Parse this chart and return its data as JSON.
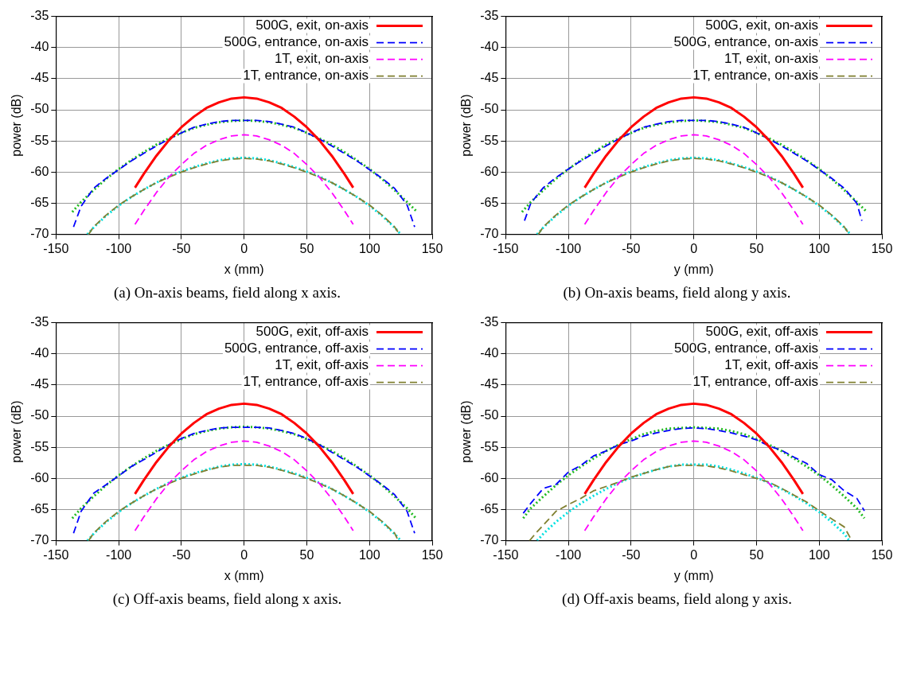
{
  "chart_data": [
    {
      "type": "line",
      "xlabel": "x (mm)",
      "ylabel": "power (dB)",
      "xlim": [
        -150,
        150
      ],
      "ylim": [
        -70,
        -35
      ],
      "xticks": [
        -150,
        -100,
        -50,
        0,
        50,
        100,
        150
      ],
      "yticks": [
        -70,
        -65,
        -60,
        -55,
        -50,
        -45,
        -40,
        -35
      ],
      "grid": true,
      "legend": "top right",
      "marker": "none",
      "annotations": [
        "(a) On-axis beams, field along x axis."
      ],
      "series": [
        {
          "name": "500G, exit, on-axis",
          "color": "#ff0000",
          "line_style": "solid",
          "x": [
            -87,
            -80,
            -70,
            -60,
            -50,
            -40,
            -30,
            -20,
            -10,
            0,
            10,
            20,
            30,
            40,
            50,
            60,
            70,
            80,
            87
          ],
          "values": [
            -62.5,
            -60.3,
            -57.4,
            -54.9,
            -52.8,
            -51.1,
            -49.7,
            -48.8,
            -48.2,
            -48,
            -48.2,
            -48.8,
            -49.7,
            -51.1,
            -52.8,
            -54.9,
            -57.4,
            -60.3,
            -62.5
          ]
        },
        {
          "name": "500G, entrance, on-axis",
          "color": "#0000ff",
          "line_style": "dashed",
          "x": [
            -136,
            -130,
            -120,
            -110,
            -100,
            -90,
            -80,
            -70,
            -60,
            -50,
            -40,
            -30,
            -20,
            -10,
            0,
            10,
            20,
            30,
            40,
            50,
            60,
            70,
            80,
            90,
            100,
            110,
            120,
            130,
            136
          ],
          "values": [
            -68.8,
            -65.5,
            -62.6,
            -61.0,
            -59.6,
            -58.2,
            -57.0,
            -55.8,
            -54.7,
            -53.7,
            -52.8,
            -52.3,
            -51.9,
            -51.7,
            -51.7,
            -51.7,
            -51.9,
            -52.3,
            -52.8,
            -53.7,
            -54.7,
            -55.8,
            -57.0,
            -58.2,
            -59.6,
            -61.0,
            -62.6,
            -65.3,
            -68.8
          ]
        },
        {
          "name": "1T, exit, on-axis",
          "color": "#ff00ff",
          "line_style": "dashed",
          "x": [
            -87,
            -80,
            -70,
            -60,
            -50,
            -40,
            -30,
            -20,
            -10,
            0,
            10,
            20,
            30,
            40,
            50,
            60,
            70,
            80,
            87
          ],
          "values": [
            -68.4,
            -66.2,
            -63.3,
            -60.8,
            -58.8,
            -57.0,
            -55.7,
            -54.8,
            -54.2,
            -54,
            -54.2,
            -54.8,
            -55.7,
            -57.0,
            -58.8,
            -60.8,
            -63.3,
            -66.2,
            -68.4
          ]
        },
        {
          "name": "1T, entrance, on-axis",
          "color": "#808030",
          "line_style": "dashed",
          "x": [
            -124,
            -120,
            -110,
            -100,
            -90,
            -80,
            -70,
            -60,
            -50,
            -40,
            -30,
            -20,
            -10,
            0,
            10,
            20,
            30,
            40,
            50,
            60,
            70,
            80,
            90,
            100,
            110,
            120,
            124
          ],
          "values": [
            -70,
            -68.8,
            -66.9,
            -65.3,
            -64.0,
            -62.8,
            -61.7,
            -60.8,
            -60.0,
            -59.3,
            -58.7,
            -58.2,
            -57.9,
            -57.8,
            -57.9,
            -58.2,
            -58.7,
            -59.3,
            -60.0,
            -60.8,
            -61.7,
            -62.8,
            -64.0,
            -65.3,
            -66.9,
            -68.8,
            -70
          ]
        },
        {
          "color": "#22bb22",
          "line_style": "dotted",
          "x": [
            -137,
            -130,
            -120,
            -110,
            -100,
            -90,
            -80,
            -70,
            -60,
            -50,
            -40,
            -30,
            -20,
            -10,
            0,
            10,
            20,
            30,
            40,
            50,
            60,
            70,
            80,
            90,
            100,
            110,
            120,
            130,
            137
          ],
          "values": [
            -66.4,
            -64.8,
            -62.9,
            -61.1,
            -59.5,
            -58.1,
            -56.8,
            -55.6,
            -54.6,
            -53.7,
            -52.9,
            -52.4,
            -52.0,
            -51.8,
            -51.7,
            -51.8,
            -52.0,
            -52.4,
            -52.9,
            -53.7,
            -54.6,
            -55.6,
            -56.8,
            -58.1,
            -59.5,
            -61.1,
            -62.9,
            -64.8,
            -66.2
          ]
        },
        {
          "color": "#00e0e0",
          "line_style": "dotted",
          "x": [
            -125,
            -120,
            -110,
            -100,
            -90,
            -80,
            -70,
            -60,
            -50,
            -40,
            -30,
            -20,
            -10,
            0,
            10,
            20,
            30,
            40,
            50,
            60,
            70,
            80,
            90,
            100,
            110,
            120,
            125
          ],
          "values": [
            -70,
            -68.9,
            -67.0,
            -65.4,
            -64.0,
            -62.8,
            -61.7,
            -60.7,
            -59.9,
            -59.2,
            -58.6,
            -58.1,
            -57.8,
            -57.7,
            -57.8,
            -58.1,
            -58.6,
            -59.2,
            -59.9,
            -60.7,
            -61.7,
            -62.8,
            -64.0,
            -65.4,
            -67.0,
            -68.9,
            -70
          ]
        }
      ]
    },
    {
      "type": "line",
      "xlabel": "y (mm)",
      "ylabel": "power (dB)",
      "xlim": [
        -150,
        150
      ],
      "ylim": [
        -70,
        -35
      ],
      "xticks": [
        -150,
        -100,
        -50,
        0,
        50,
        100,
        150
      ],
      "yticks": [
        -70,
        -65,
        -60,
        -55,
        -50,
        -45,
        -40,
        -35
      ],
      "grid": true,
      "legend": "top right",
      "marker": "none",
      "annotations": [
        "(b) On-axis beams, field along y axis."
      ],
      "series": [
        {
          "name": "500G, exit, on-axis",
          "color": "#ff0000",
          "line_style": "solid",
          "x": [
            -87,
            -80,
            -70,
            -60,
            -50,
            -40,
            -30,
            -20,
            -10,
            0,
            10,
            20,
            30,
            40,
            50,
            60,
            70,
            80,
            87
          ],
          "values": [
            -62.5,
            -60.3,
            -57.4,
            -54.9,
            -52.8,
            -51.1,
            -49.7,
            -48.8,
            -48.2,
            -48,
            -48.2,
            -48.8,
            -49.7,
            -51.1,
            -52.8,
            -54.9,
            -57.4,
            -60.3,
            -62.5
          ]
        },
        {
          "name": "500G, entrance, on-axis",
          "color": "#0000ff",
          "line_style": "dashed",
          "x": [
            -135,
            -130,
            -120,
            -110,
            -100,
            -90,
            -80,
            -70,
            -60,
            -50,
            -40,
            -30,
            -20,
            -10,
            0,
            10,
            20,
            30,
            40,
            50,
            60,
            70,
            80,
            90,
            100,
            110,
            120,
            130,
            134
          ],
          "values": [
            -67.8,
            -65.0,
            -62.5,
            -60.9,
            -59.5,
            -58.2,
            -57.0,
            -55.8,
            -54.7,
            -53.7,
            -52.8,
            -52.3,
            -51.9,
            -51.7,
            -51.7,
            -51.7,
            -51.9,
            -52.3,
            -52.8,
            -53.7,
            -54.7,
            -55.8,
            -57.0,
            -58.2,
            -59.6,
            -61.0,
            -62.6,
            -65.0,
            -67.8
          ]
        },
        {
          "name": "1T, exit, on-axis",
          "color": "#ff00ff",
          "line_style": "dashed",
          "x": [
            -87,
            -80,
            -70,
            -60,
            -50,
            -40,
            -30,
            -20,
            -10,
            0,
            10,
            20,
            30,
            40,
            50,
            60,
            70,
            80,
            87
          ],
          "values": [
            -68.4,
            -66.2,
            -63.3,
            -60.8,
            -58.8,
            -57.0,
            -55.7,
            -54.8,
            -54.2,
            -54,
            -54.2,
            -54.8,
            -55.7,
            -57.0,
            -58.8,
            -60.8,
            -63.3,
            -66.2,
            -68.4
          ]
        },
        {
          "name": "1T, entrance, on-axis",
          "color": "#808030",
          "line_style": "dashed",
          "x": [
            -124,
            -120,
            -110,
            -100,
            -90,
            -80,
            -70,
            -60,
            -50,
            -40,
            -30,
            -20,
            -10,
            0,
            10,
            20,
            30,
            40,
            50,
            60,
            70,
            80,
            90,
            100,
            110,
            120,
            124
          ],
          "values": [
            -70,
            -68.8,
            -66.9,
            -65.3,
            -64.0,
            -62.8,
            -61.7,
            -60.8,
            -60.0,
            -59.3,
            -58.7,
            -58.2,
            -57.9,
            -57.8,
            -57.9,
            -58.2,
            -58.7,
            -59.3,
            -60.0,
            -60.8,
            -61.7,
            -62.8,
            -64.0,
            -65.3,
            -66.9,
            -68.8,
            -70
          ]
        },
        {
          "color": "#22bb22",
          "line_style": "dotted",
          "x": [
            -137,
            -130,
            -120,
            -110,
            -100,
            -90,
            -80,
            -70,
            -60,
            -50,
            -40,
            -30,
            -20,
            -10,
            0,
            10,
            20,
            30,
            40,
            50,
            60,
            70,
            80,
            90,
            100,
            110,
            120,
            130,
            137
          ],
          "values": [
            -66.4,
            -64.8,
            -62.9,
            -61.1,
            -59.5,
            -58.1,
            -56.8,
            -55.6,
            -54.6,
            -53.7,
            -52.9,
            -52.4,
            -52.0,
            -51.8,
            -51.7,
            -51.8,
            -52.0,
            -52.4,
            -52.9,
            -53.7,
            -54.6,
            -55.6,
            -56.8,
            -58.1,
            -59.5,
            -61.1,
            -62.9,
            -64.8,
            -66.2
          ]
        },
        {
          "color": "#00e0e0",
          "line_style": "dotted",
          "x": [
            -125,
            -120,
            -110,
            -100,
            -90,
            -80,
            -70,
            -60,
            -50,
            -40,
            -30,
            -20,
            -10,
            0,
            10,
            20,
            30,
            40,
            50,
            60,
            70,
            80,
            90,
            100,
            110,
            120,
            125
          ],
          "values": [
            -70,
            -68.9,
            -67.0,
            -65.4,
            -64.0,
            -62.8,
            -61.7,
            -60.7,
            -59.9,
            -59.2,
            -58.6,
            -58.1,
            -57.8,
            -57.7,
            -57.8,
            -58.1,
            -58.6,
            -59.2,
            -59.9,
            -60.7,
            -61.7,
            -62.8,
            -64.0,
            -65.4,
            -67.0,
            -68.9,
            -70
          ]
        }
      ]
    },
    {
      "type": "line",
      "xlabel": "x (mm)",
      "ylabel": "power (dB)",
      "xlim": [
        -150,
        150
      ],
      "ylim": [
        -70,
        -35
      ],
      "xticks": [
        -150,
        -100,
        -50,
        0,
        50,
        100,
        150
      ],
      "yticks": [
        -70,
        -65,
        -60,
        -55,
        -50,
        -45,
        -40,
        -35
      ],
      "grid": true,
      "legend": "top right",
      "marker": "none",
      "annotations": [
        "(c) Off-axis beams, field along x axis."
      ],
      "series": [
        {
          "name": "500G, exit, off-axis",
          "color": "#ff0000",
          "line_style": "solid",
          "x": [
            -87,
            -80,
            -70,
            -60,
            -50,
            -40,
            -30,
            -20,
            -10,
            0,
            10,
            20,
            30,
            40,
            50,
            60,
            70,
            80,
            87
          ],
          "values": [
            -62.5,
            -60.3,
            -57.4,
            -54.9,
            -52.8,
            -51.1,
            -49.7,
            -48.8,
            -48.2,
            -48,
            -48.2,
            -48.8,
            -49.7,
            -51.1,
            -52.8,
            -54.9,
            -57.4,
            -60.3,
            -62.5
          ]
        },
        {
          "name": "500G, entrance, off-axis",
          "color": "#0000ff",
          "line_style": "dashed",
          "x": [
            -136,
            -130,
            -120,
            -110,
            -100,
            -90,
            -80,
            -70,
            -60,
            -50,
            -40,
            -30,
            -20,
            -10,
            0,
            10,
            20,
            30,
            40,
            50,
            60,
            70,
            80,
            90,
            100,
            110,
            120,
            130,
            136
          ],
          "values": [
            -68.8,
            -65.3,
            -62.4,
            -61.0,
            -59.6,
            -58.1,
            -57.0,
            -55.8,
            -54.6,
            -53.6,
            -52.8,
            -52.3,
            -51.9,
            -51.8,
            -51.8,
            -51.8,
            -51.9,
            -52.3,
            -52.8,
            -53.6,
            -54.6,
            -55.8,
            -57.0,
            -58.2,
            -59.6,
            -61.0,
            -62.6,
            -65.3,
            -68.8
          ]
        },
        {
          "name": "1T, exit, off-axis",
          "color": "#ff00ff",
          "line_style": "dashed",
          "x": [
            -87,
            -80,
            -70,
            -60,
            -50,
            -40,
            -30,
            -20,
            -10,
            0,
            10,
            20,
            30,
            40,
            50,
            60,
            70,
            80,
            87
          ],
          "values": [
            -68.4,
            -66.2,
            -63.3,
            -60.8,
            -58.8,
            -57.0,
            -55.7,
            -54.8,
            -54.2,
            -54,
            -54.2,
            -54.8,
            -55.7,
            -57.0,
            -58.8,
            -60.8,
            -63.3,
            -66.2,
            -68.4
          ]
        },
        {
          "name": "1T, entrance, off-axis",
          "color": "#808030",
          "line_style": "dashed",
          "x": [
            -124,
            -120,
            -110,
            -100,
            -90,
            -80,
            -70,
            -60,
            -50,
            -40,
            -30,
            -20,
            -10,
            0,
            10,
            20,
            30,
            40,
            50,
            60,
            70,
            80,
            90,
            100,
            110,
            120,
            123
          ],
          "values": [
            -70,
            -68.8,
            -66.9,
            -65.3,
            -64.0,
            -62.8,
            -61.7,
            -60.8,
            -60.0,
            -59.3,
            -58.7,
            -58.2,
            -57.9,
            -57.9,
            -57.9,
            -58.2,
            -58.7,
            -59.3,
            -60.0,
            -60.8,
            -61.7,
            -62.8,
            -64.0,
            -65.3,
            -66.9,
            -68.8,
            -70
          ]
        },
        {
          "color": "#22bb22",
          "line_style": "dotted",
          "x": [
            -137,
            -130,
            -120,
            -110,
            -100,
            -90,
            -80,
            -70,
            -60,
            -50,
            -40,
            -30,
            -20,
            -10,
            0,
            10,
            20,
            30,
            40,
            50,
            60,
            70,
            80,
            90,
            100,
            110,
            120,
            130,
            137
          ],
          "values": [
            -66.4,
            -64.8,
            -62.9,
            -61.1,
            -59.5,
            -58.1,
            -56.8,
            -55.6,
            -54.6,
            -53.7,
            -52.9,
            -52.4,
            -52.0,
            -51.8,
            -51.7,
            -51.8,
            -52.0,
            -52.4,
            -52.9,
            -53.7,
            -54.6,
            -55.6,
            -56.8,
            -58.1,
            -59.5,
            -61.1,
            -62.9,
            -64.8,
            -66.4
          ]
        },
        {
          "color": "#00e0e0",
          "line_style": "dotted",
          "x": [
            -125,
            -120,
            -110,
            -100,
            -90,
            -80,
            -70,
            -60,
            -50,
            -40,
            -30,
            -20,
            -10,
            0,
            10,
            20,
            30,
            40,
            50,
            60,
            70,
            80,
            90,
            100,
            110,
            120,
            125
          ],
          "values": [
            -70,
            -68.9,
            -67.0,
            -65.4,
            -64.0,
            -62.8,
            -61.7,
            -60.7,
            -59.9,
            -59.2,
            -58.6,
            -58.1,
            -57.8,
            -57.7,
            -57.8,
            -58.1,
            -58.6,
            -59.2,
            -59.9,
            -60.7,
            -61.7,
            -62.8,
            -64.0,
            -65.4,
            -67.0,
            -68.9,
            -70
          ]
        }
      ]
    },
    {
      "type": "line",
      "xlabel": "y (mm)",
      "ylabel": "power (dB)",
      "xlim": [
        -150,
        150
      ],
      "ylim": [
        -70,
        -35
      ],
      "xticks": [
        -150,
        -100,
        -50,
        0,
        50,
        100,
        150
      ],
      "yticks": [
        -70,
        -65,
        -60,
        -55,
        -50,
        -45,
        -40,
        -35
      ],
      "grid": true,
      "legend": "top right",
      "marker": "none",
      "annotations": [
        "(d) Off-axis beams, field along y axis."
      ],
      "series": [
        {
          "name": "500G, exit, off-axis",
          "color": "#ff0000",
          "line_style": "solid",
          "x": [
            -87,
            -80,
            -70,
            -60,
            -50,
            -40,
            -30,
            -20,
            -10,
            0,
            10,
            20,
            30,
            40,
            50,
            60,
            70,
            80,
            87
          ],
          "values": [
            -62.5,
            -60.3,
            -57.4,
            -54.9,
            -52.8,
            -51.1,
            -49.7,
            -48.8,
            -48.2,
            -48,
            -48.2,
            -48.8,
            -49.7,
            -51.1,
            -52.8,
            -54.9,
            -57.4,
            -60.3,
            -62.5
          ]
        },
        {
          "name": "500G, entrance, off-axis",
          "color": "#0000ff",
          "line_style": "dashed",
          "x": [
            -136,
            -130,
            -120,
            -110,
            -100,
            -90,
            -80,
            -70,
            -60,
            -50,
            -40,
            -30,
            -20,
            -10,
            0,
            10,
            20,
            30,
            40,
            50,
            60,
            70,
            80,
            90,
            100,
            110,
            120,
            130,
            136
          ],
          "values": [
            -65.6,
            -64.0,
            -61.6,
            -61.0,
            -59.0,
            -57.9,
            -56.4,
            -55.6,
            -54.6,
            -54.0,
            -53.2,
            -52.7,
            -52.3,
            -52.0,
            -51.9,
            -52.0,
            -52.3,
            -52.7,
            -53.2,
            -53.8,
            -54.8,
            -55.5,
            -56.6,
            -57.6,
            -59.4,
            -60.2,
            -62.0,
            -63.2,
            -65.2
          ]
        },
        {
          "name": "1T, exit, off-axis",
          "color": "#ff00ff",
          "line_style": "dashed",
          "x": [
            -87,
            -80,
            -70,
            -60,
            -50,
            -40,
            -30,
            -20,
            -10,
            0,
            10,
            20,
            30,
            40,
            50,
            60,
            70,
            80,
            87
          ],
          "values": [
            -68.4,
            -66.2,
            -63.3,
            -60.8,
            -58.8,
            -57.0,
            -55.7,
            -54.8,
            -54.2,
            -54,
            -54.2,
            -54.8,
            -55.7,
            -57.0,
            -58.8,
            -60.8,
            -63.3,
            -66.2,
            -68.4
          ]
        },
        {
          "name": "1T, entrance, off-axis",
          "color": "#808030",
          "line_style": "dashed",
          "x": [
            -131,
            -126,
            -120,
            -110,
            -100,
            -90,
            -80,
            -70,
            -60,
            -50,
            -40,
            -30,
            -20,
            -10,
            0,
            10,
            20,
            30,
            40,
            50,
            60,
            70,
            80,
            90,
            100,
            110,
            120,
            126
          ],
          "values": [
            -70,
            -68.8,
            -67.5,
            -65.3,
            -64.2,
            -63.2,
            -62.0,
            -61.3,
            -60.6,
            -59.8,
            -59.2,
            -58.6,
            -58.1,
            -57.9,
            -57.9,
            -58.0,
            -58.3,
            -58.8,
            -59.4,
            -60.0,
            -60.6,
            -61.6,
            -62.7,
            -63.8,
            -65.2,
            -66.5,
            -67.8,
            -70
          ]
        },
        {
          "color": "#22bb22",
          "line_style": "dotted",
          "x": [
            -136,
            -130,
            -120,
            -110,
            -100,
            -90,
            -80,
            -70,
            -60,
            -50,
            -40,
            -30,
            -20,
            -10,
            0,
            10,
            20,
            30,
            40,
            50,
            60,
            70,
            80,
            90,
            100,
            110,
            120,
            130,
            136
          ],
          "values": [
            -66.4,
            -64.8,
            -62.9,
            -61.1,
            -59.5,
            -58.1,
            -56.8,
            -55.6,
            -54.6,
            -53.7,
            -52.9,
            -52.4,
            -52.0,
            -51.9,
            -51.8,
            -51.9,
            -52.0,
            -52.4,
            -52.9,
            -53.7,
            -54.6,
            -55.6,
            -56.8,
            -58.1,
            -59.5,
            -61.1,
            -62.9,
            -64.8,
            -66.4
          ]
        },
        {
          "color": "#00e0e0",
          "line_style": "dotted",
          "x": [
            -125,
            -120,
            -110,
            -100,
            -90,
            -80,
            -70,
            -60,
            -50,
            -40,
            -30,
            -20,
            -10,
            0,
            10,
            20,
            30,
            40,
            50,
            60,
            70,
            80,
            90,
            100,
            110,
            120,
            124
          ],
          "values": [
            -70,
            -68.9,
            -67.0,
            -65.4,
            -64.0,
            -62.8,
            -61.7,
            -60.7,
            -59.9,
            -59.2,
            -58.6,
            -58.1,
            -57.8,
            -57.8,
            -57.8,
            -58.1,
            -58.6,
            -59.2,
            -59.9,
            -60.7,
            -61.7,
            -62.8,
            -64.0,
            -65.4,
            -67.0,
            -68.9,
            -70
          ]
        }
      ]
    }
  ]
}
